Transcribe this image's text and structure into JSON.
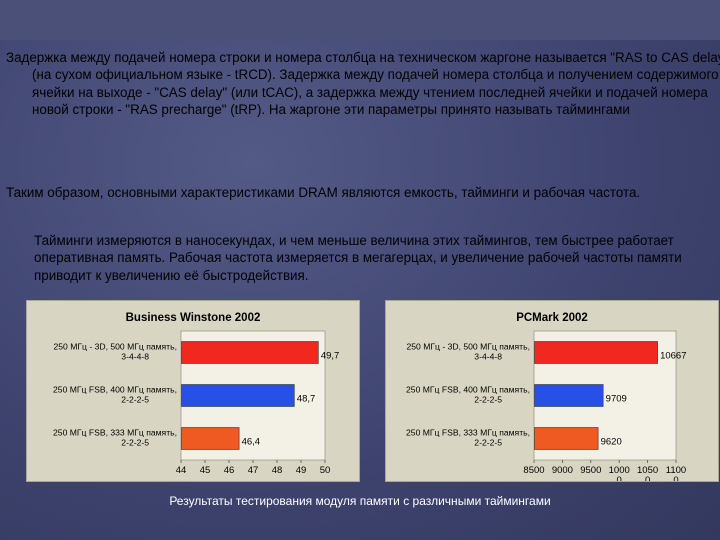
{
  "paragraphs": [
    "Задержка между подачей номера строки и номера столбца на техническом жаргоне называется \"RAS to CAS delay\" (на сухом официальном языке - tRCD). Задержка между подачей номера столбца и получением содержимого ячейки на выходе - \"CAS delay\" (или tCAC), а задержка между чтением последней ячейки и подачей номера новой строки - \"RAS precharge\" (tRP). На жаргоне эти параметры принято называть таймингами",
    "Таким образом, основными характеристиками DRAM являются емкость, тайминги и рабочая частота.",
    "Тайминги измеряются в наносекундах, и чем меньше величина этих таймингов, тем быстрее работает оперативная память. Рабочая частота измеряется в мегагерцах, и увеличение рабочей частоты памяти приводит к увеличению её быстродействия."
  ],
  "colors": {
    "bar_red": "#f0281e",
    "bar_blue": "#2850e6",
    "bar_orange": "#ee5a22",
    "plot_bg": "#f3f1e6"
  },
  "chart_data": [
    {
      "type": "bar",
      "orientation": "horizontal",
      "title": "Business Winstone 2002",
      "categories": [
        [
          "250 МГц - 3D, 500 МГц память,",
          "3-4-4-8"
        ],
        [
          "250 МГц FSB, 400 МГц память,",
          "2-2-2-5"
        ],
        [
          "250 МГц FSB, 333 МГц память,",
          "2-2-2-5"
        ]
      ],
      "values": [
        49.7,
        48.7,
        46.4
      ],
      "value_labels": [
        "49,7",
        "48,7",
        "46,4"
      ],
      "xlim": [
        44,
        50
      ],
      "ticks": [
        44,
        45,
        46,
        47,
        48,
        49,
        50
      ],
      "tick_labels": [
        "44",
        "45",
        "46",
        "47",
        "48",
        "49",
        "50"
      ],
      "bar_colors": [
        "#f0281e",
        "#2850e6",
        "#ee5a22"
      ]
    },
    {
      "type": "bar",
      "orientation": "horizontal",
      "title": "PCMark 2002",
      "categories": [
        [
          "250 МГц - 3D, 500 МГц память,",
          "3-4-4-8"
        ],
        [
          "250 МГц FSB, 400 МГц память,",
          "2-2-2-5"
        ],
        [
          "250 МГц FSB, 333 МГц память,",
          "2-2-2-5"
        ]
      ],
      "values": [
        10667,
        9709,
        9620
      ],
      "value_labels": [
        "10667",
        "9709",
        "9620"
      ],
      "xlim": [
        8500,
        11000
      ],
      "ticks": [
        8500,
        9000,
        9500,
        10000,
        10500,
        11000
      ],
      "tick_labels": [
        "8500",
        "9000",
        "9500",
        "1000\n0",
        "1050\n0",
        "1100\n0"
      ],
      "bar_colors": [
        "#f0281e",
        "#2850e6",
        "#ee5a22"
      ]
    }
  ],
  "caption": "Результаты тестирования модуля памяти с различными таймингами"
}
